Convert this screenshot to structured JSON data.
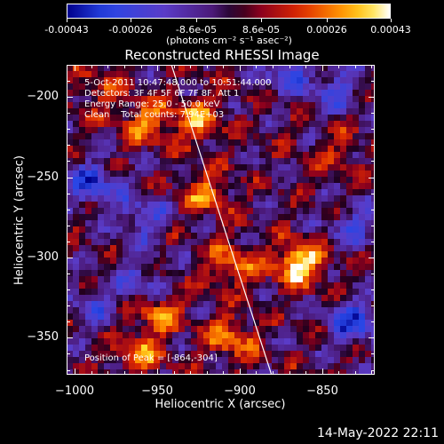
{
  "colorbar": {
    "tick_labels": [
      "-0.00043",
      "-0.00026",
      "-8.6e-05",
      "8.6e-05",
      "0.00026",
      "0.00043"
    ],
    "tick_values": [
      -0.00043,
      -0.00026,
      -8.6e-05,
      8.6e-05,
      0.00026,
      0.00043
    ],
    "range": [
      -0.00043,
      0.00043
    ],
    "unit_label": "(photons cm⁻² s⁻¹ asec⁻²)"
  },
  "plot": {
    "title": "Reconstructed RHESSI Image",
    "info_lines": [
      "5-Oct-2011 10:47:48.000 to 10:51:44.000",
      "Detectors: 3F 4F 5F 6F 7F 8F, Att 1",
      "Energy Range: 25.0 - 50.0 keV",
      "Clean    Total counts: 7.94E+03"
    ],
    "peak_label": "Position of Peak = [-864,-304]",
    "limb_line_color": "#ffffff"
  },
  "chart_data": {
    "type": "heatmap",
    "title": "Reconstructed RHESSI Image",
    "xlabel": "Heliocentric X (arcsec)",
    "ylabel": "Heliocentric Y (arcsec)",
    "xlim": [
      -1005,
      -818
    ],
    "ylim": [
      -373,
      -180
    ],
    "x_ticks": [
      -1000,
      -950,
      -900,
      -850
    ],
    "x_tick_labels": [
      "−1000",
      "−950",
      "−900",
      "−850"
    ],
    "y_ticks": [
      -200,
      -250,
      -300,
      -350
    ],
    "y_tick_labels": [
      "−200",
      "−250",
      "−300",
      "−350"
    ],
    "colormap": "blue-purple-red-yellow-white",
    "peak": [
      -864,
      -304
    ],
    "hot_regions": [
      {
        "x": -864,
        "y": -304,
        "level": 1.0
      },
      {
        "x": -925,
        "y": -215,
        "level": 0.65
      },
      {
        "x": -955,
        "y": -215,
        "level": 0.6
      },
      {
        "x": -920,
        "y": -260,
        "level": 0.55
      },
      {
        "x": -905,
        "y": -305,
        "level": 0.55
      },
      {
        "x": -950,
        "y": -335,
        "level": 0.55
      },
      {
        "x": -905,
        "y": -350,
        "level": 0.6
      },
      {
        "x": -960,
        "y": -360,
        "level": 0.5
      },
      {
        "x": -985,
        "y": -195,
        "level": 0.35
      },
      {
        "x": -840,
        "y": -235,
        "level": 0.3
      }
    ],
    "cold_regions": [
      {
        "x": -990,
        "y": -255,
        "level": -0.7
      },
      {
        "x": -960,
        "y": -275,
        "level": -0.55
      },
      {
        "x": -960,
        "y": -315,
        "level": -0.45
      },
      {
        "x": -830,
        "y": -340,
        "level": -0.75
      },
      {
        "x": -830,
        "y": -280,
        "level": -0.5
      },
      {
        "x": -870,
        "y": -185,
        "level": -0.55
      },
      {
        "x": -840,
        "y": -195,
        "level": -0.5
      },
      {
        "x": -990,
        "y": -330,
        "level": -0.4
      }
    ],
    "limb_line": [
      [
        -942,
        -178
      ],
      [
        -880,
        -375
      ]
    ]
  },
  "footer": {
    "date": "14-May-2022 22:11"
  }
}
